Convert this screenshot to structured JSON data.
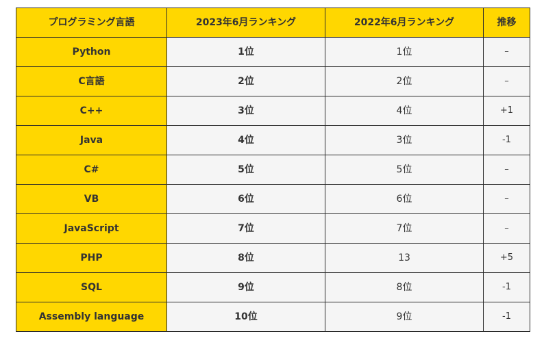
{
  "table": {
    "headers": [
      "プログラミング言語",
      "2023年6月ランキング",
      "2022年6月ランキング",
      "推移"
    ],
    "rows": [
      {
        "language": "Python",
        "rank_2023": "1位",
        "rank_2022": "1位",
        "change": "–"
      },
      {
        "language": "C言語",
        "rank_2023": "2位",
        "rank_2022": "2位",
        "change": "–"
      },
      {
        "language": "C++",
        "rank_2023": "3位",
        "rank_2022": "4位",
        "change": "+1"
      },
      {
        "language": "Java",
        "rank_2023": "4位",
        "rank_2022": "3位",
        "change": "-1"
      },
      {
        "language": "C#",
        "rank_2023": "5位",
        "rank_2022": "5位",
        "change": "–"
      },
      {
        "language": "VB",
        "rank_2023": "6位",
        "rank_2022": "6位",
        "change": "–"
      },
      {
        "language": "JavaScript",
        "rank_2023": "7位",
        "rank_2022": "7位",
        "change": "–"
      },
      {
        "language": "PHP",
        "rank_2023": "8位",
        "rank_2022": "13",
        "change": "+5"
      },
      {
        "language": "SQL",
        "rank_2023": "9位",
        "rank_2022": "8位",
        "change": "-1"
      },
      {
        "language": "Assembly language",
        "rank_2023": "10位",
        "rank_2022": "9位",
        "change": "-1"
      }
    ]
  },
  "colors": {
    "header_bg": "#ffd700",
    "cell_bg": "#f5f5f5",
    "border": "#2b2b2b",
    "text": "#333333"
  }
}
